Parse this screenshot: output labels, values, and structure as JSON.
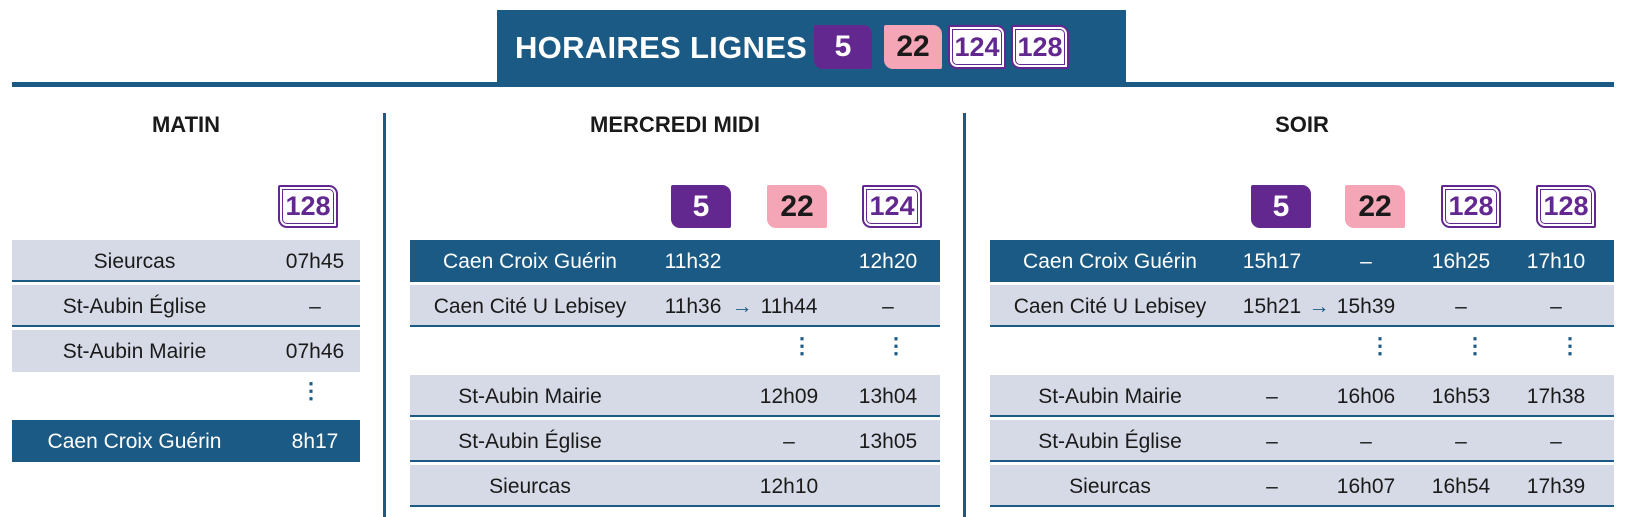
{
  "header": {
    "title": "HORAIRES LIGNES",
    "lines": [
      "5",
      "22",
      "124",
      "128"
    ]
  },
  "colors": {
    "brand_blue": "#1b5a84",
    "line_5": "#62288f",
    "line_22": "#f4a5b6",
    "row_light": "#d6dae6"
  },
  "matin": {
    "title": "MATIN",
    "lines": [
      "128"
    ],
    "rows": [
      {
        "stop": "Sieurcas",
        "t": [
          "07h45"
        ]
      },
      {
        "stop": "St-Aubin Église",
        "t": [
          "–"
        ]
      },
      {
        "stop": "St-Aubin Mairie",
        "t": [
          "07h46"
        ]
      },
      {
        "stop": "Caen Croix Guérin",
        "t": [
          "8h17"
        ]
      }
    ]
  },
  "midi": {
    "title": "MERCREDI MIDI",
    "lines": [
      "5",
      "22",
      "124"
    ],
    "rows": [
      {
        "stop": "Caen Croix Guérin",
        "t": [
          "11h32",
          "",
          "12h20"
        ]
      },
      {
        "stop": "Caen Cité U Lebisey",
        "t": [
          "11h36",
          "11h44",
          "–"
        ]
      },
      {
        "stop": "St-Aubin Mairie",
        "t": [
          "",
          "12h09",
          "13h04"
        ]
      },
      {
        "stop": "St-Aubin Église",
        "t": [
          "",
          "–",
          "13h05"
        ]
      },
      {
        "stop": "Sieurcas",
        "t": [
          "",
          "12h10",
          ""
        ]
      }
    ]
  },
  "soir": {
    "title": "SOIR",
    "lines": [
      "5",
      "22",
      "128",
      "128"
    ],
    "rows": [
      {
        "stop": "Caen Croix Guérin",
        "t": [
          "15h17",
          "–",
          "16h25",
          "17h10"
        ]
      },
      {
        "stop": "Caen Cité U Lebisey",
        "t": [
          "15h21",
          "15h39",
          "–",
          "–"
        ]
      },
      {
        "stop": "St-Aubin Mairie",
        "t": [
          "–",
          "16h06",
          "16h53",
          "17h38"
        ]
      },
      {
        "stop": "St-Aubin Église",
        "t": [
          "–",
          "–",
          "–",
          "–"
        ]
      },
      {
        "stop": "Sieurcas",
        "t": [
          "–",
          "16h07",
          "16h54",
          "17h39"
        ]
      }
    ]
  },
  "symbols": {
    "arrow": "→",
    "dots": "⋮"
  }
}
